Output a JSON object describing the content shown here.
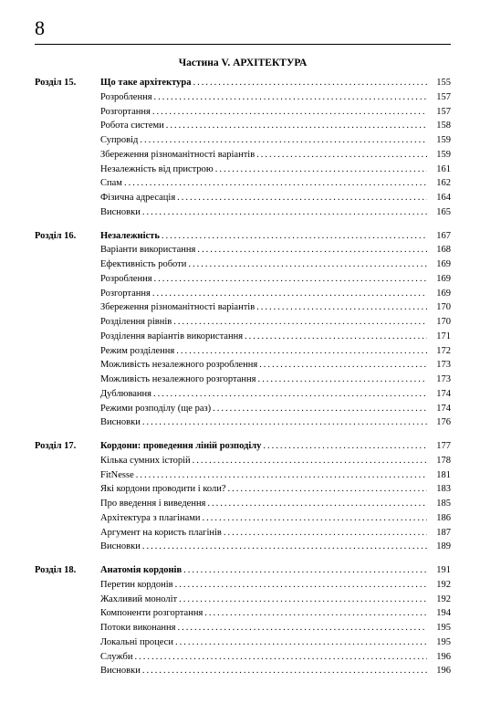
{
  "page_number": "8",
  "part_title": "Частина V. АРХІТЕКТУРА",
  "colors": {
    "background": "#ffffff",
    "text": "#000000",
    "divider": "#000000"
  },
  "typography": {
    "page_number_size": 22,
    "part_title_size": 11.5,
    "body_size": 10.5,
    "font_family": "Georgia, Times New Roman, serif"
  },
  "chapters": [
    {
      "label": "Розділ 15.",
      "title": "Що таке архітектура",
      "page": "155",
      "sections": [
        {
          "title": "Розроблення",
          "page": "157"
        },
        {
          "title": "Розгортання",
          "page": "157"
        },
        {
          "title": "Робота системи",
          "page": "158"
        },
        {
          "title": "Супровід",
          "page": "159"
        },
        {
          "title": "Збереження різноманітності варіантів",
          "page": "159"
        },
        {
          "title": "Незалежність від пристрою",
          "page": "161"
        },
        {
          "title": "Спам",
          "page": "162"
        },
        {
          "title": "Фізична адресація",
          "page": "164"
        },
        {
          "title": "Висновки",
          "page": "165"
        }
      ]
    },
    {
      "label": "Розділ 16.",
      "title": "Незалежність",
      "page": "167",
      "sections": [
        {
          "title": "Варіанти використання",
          "page": "168"
        },
        {
          "title": "Ефективність роботи",
          "page": "169"
        },
        {
          "title": "Розроблення",
          "page": "169"
        },
        {
          "title": "Розгортання",
          "page": "169"
        },
        {
          "title": "Збереження різноманітності варіантів",
          "page": "170"
        },
        {
          "title": "Розділення рівнів",
          "page": "170"
        },
        {
          "title": "Розділення варіантів використання",
          "page": "171"
        },
        {
          "title": "Режим розділення",
          "page": "172"
        },
        {
          "title": "Можливість незалежного розроблення",
          "page": "173"
        },
        {
          "title": "Можливість незалежного розгортання",
          "page": "173"
        },
        {
          "title": "Дублювання",
          "page": "174"
        },
        {
          "title": "Режими розподілу (ще раз)",
          "page": "174"
        },
        {
          "title": "Висновки",
          "page": "176"
        }
      ]
    },
    {
      "label": "Розділ 17.",
      "title": "Кордони: проведення ліній розподілу",
      "page": "177",
      "sections": [
        {
          "title": "Кілька сумних історій",
          "page": "178"
        },
        {
          "title": "FitNesse",
          "page": "181"
        },
        {
          "title": "Які кордони проводити і коли?",
          "page": "183"
        },
        {
          "title": "Про введення і виведення",
          "page": "185"
        },
        {
          "title": "Архітектура з плагінами",
          "page": "186"
        },
        {
          "title": "Аргумент на користь плагінів",
          "page": "187"
        },
        {
          "title": "Висновки",
          "page": "189"
        }
      ]
    },
    {
      "label": "Розділ 18.",
      "title": "Анатомія кордонів",
      "page": "191",
      "sections": [
        {
          "title": "Перетин кордонів",
          "page": "192"
        },
        {
          "title": "Жахливий моноліт",
          "page": "192"
        },
        {
          "title": "Компоненти розгортання",
          "page": "194"
        },
        {
          "title": "Потоки виконання",
          "page": "195"
        },
        {
          "title": "Локальні процеси",
          "page": "195"
        },
        {
          "title": "Служби",
          "page": "196"
        },
        {
          "title": "Висновки",
          "page": "196"
        }
      ]
    }
  ]
}
